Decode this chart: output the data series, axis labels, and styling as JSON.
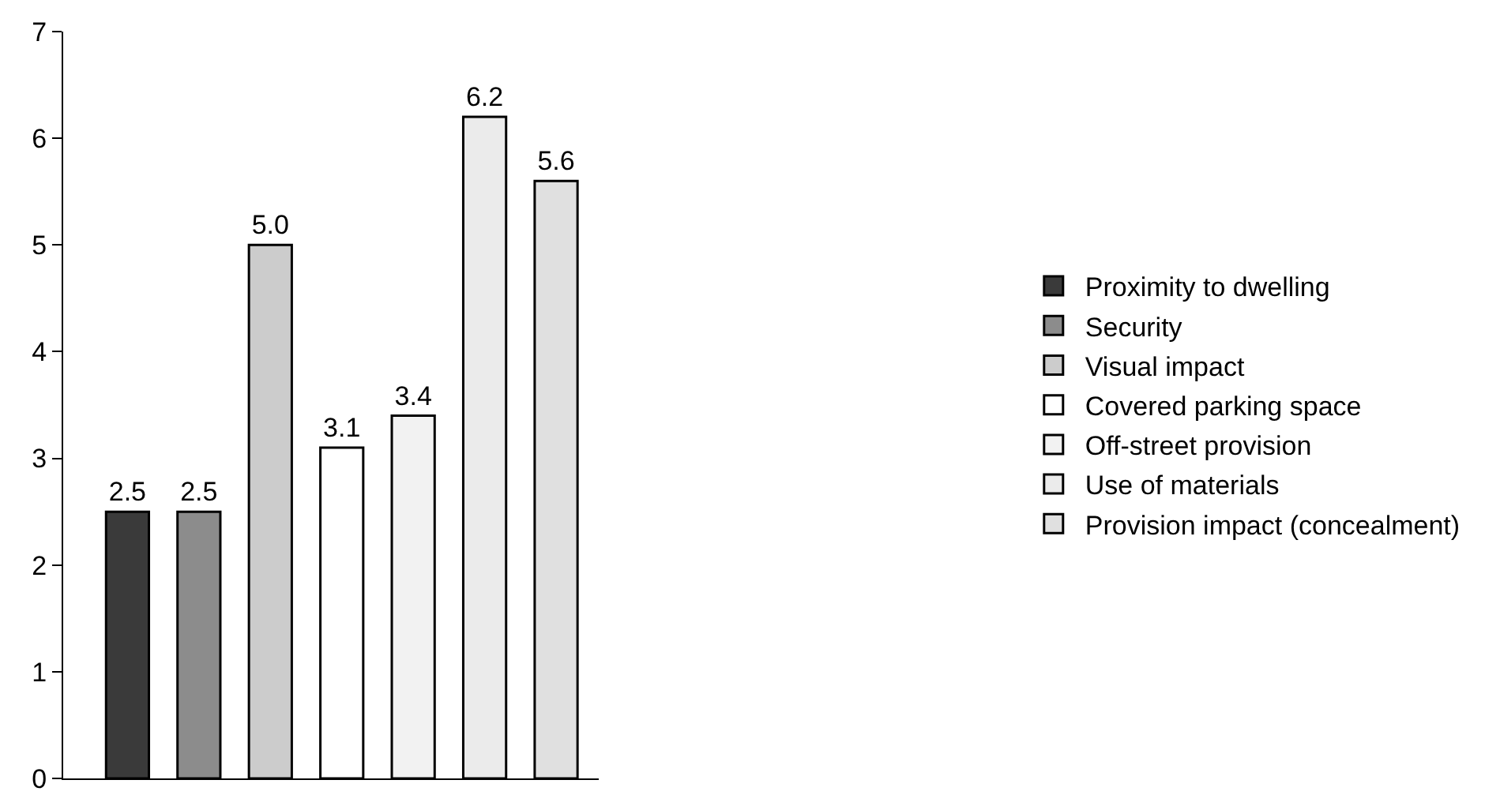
{
  "chart_data": {
    "type": "bar",
    "categories": [
      null,
      null,
      null,
      null,
      null,
      null,
      null
    ],
    "series": [
      {
        "name": "Proximity to dwelling",
        "color": "#3a3a3a",
        "values": [
          2.5,
          null,
          null,
          null,
          null,
          null,
          null
        ]
      },
      {
        "name": "Security",
        "color": "#8c8c8c",
        "values": [
          null,
          2.5,
          null,
          null,
          null,
          null,
          null
        ]
      },
      {
        "name": "Visual impact",
        "color": "#cccccc",
        "values": [
          null,
          null,
          5.0,
          null,
          null,
          null,
          null
        ]
      },
      {
        "name": "Covered parking space",
        "color": "#ffffff",
        "values": [
          null,
          null,
          null,
          3.1,
          null,
          null,
          null
        ]
      },
      {
        "name": "Off-street provision",
        "color": "#f2f2f2",
        "values": [
          null,
          null,
          null,
          null,
          3.4,
          null,
          null
        ]
      },
      {
        "name": "Use of materials",
        "color": "#ebebeb",
        "values": [
          null,
          null,
          null,
          null,
          null,
          6.2,
          null
        ]
      },
      {
        "name": "Provision impact (concealment)",
        "color": "#e0e0e0",
        "values": [
          null,
          null,
          null,
          null,
          null,
          null,
          5.6
        ]
      }
    ],
    "value_labels": [
      "2.5",
      "2.5",
      "5.0",
      "3.1",
      "3.4",
      "6.2",
      "5.6"
    ],
    "ylim": [
      0,
      7
    ],
    "yticks": [
      0,
      1,
      2,
      3,
      4,
      5,
      6,
      7
    ],
    "grid": false,
    "legend": "right"
  }
}
